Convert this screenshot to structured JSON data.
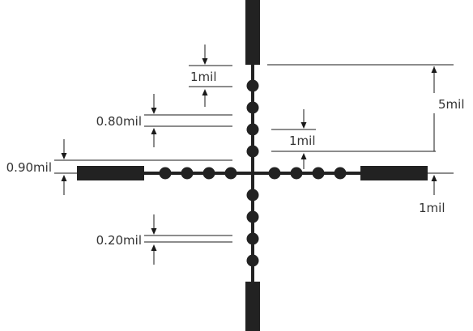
{
  "labels": {
    "one_mil_top": "1mil",
    "point_80": "0.80mil",
    "one_mil_right": "1mil",
    "five_mil": "5mil",
    "point_90": "0.90mil",
    "one_mil_bottom_right": "1mil",
    "point_20": "0.20mil"
  },
  "colors": {
    "reticle": "#222222",
    "text": "#333333",
    "background": "#ffffff"
  }
}
